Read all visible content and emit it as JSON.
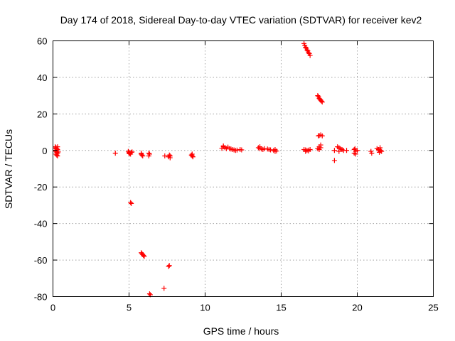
{
  "chart_data": {
    "type": "scatter",
    "title": "Day 174 of 2018, Sidereal Day-to-day VTEC variation (SDTVAR) for receiver kev2",
    "xlabel": "GPS time / hours",
    "ylabel": "SDTVAR / TECUs",
    "xlim": [
      0,
      25
    ],
    "ylim": [
      -80,
      60
    ],
    "xticks": [
      0,
      5,
      10,
      15,
      20,
      25
    ],
    "yticks": [
      -80,
      -60,
      -40,
      -20,
      0,
      20,
      40,
      60
    ],
    "grid": true,
    "marker": "+",
    "color": "#ff0000",
    "series": [
      {
        "name": "SDTVAR",
        "points": [
          [
            0.15,
            2
          ],
          [
            0.2,
            1.5
          ],
          [
            0.25,
            1
          ],
          [
            0.3,
            0.5
          ],
          [
            0.15,
            0
          ],
          [
            0.2,
            -0.5
          ],
          [
            0.25,
            -1
          ],
          [
            0.3,
            -1.5
          ],
          [
            0.2,
            -2
          ],
          [
            0.25,
            -2.5
          ],
          [
            0.3,
            -3
          ],
          [
            0.2,
            1
          ],
          [
            0.3,
            2
          ],
          [
            0.25,
            0.3
          ],
          [
            0.35,
            -0.8
          ],
          [
            4.1,
            -1.5
          ],
          [
            4.95,
            -0.5
          ],
          [
            5.0,
            -1
          ],
          [
            5.05,
            -1.5
          ],
          [
            5.1,
            -2
          ],
          [
            5.15,
            -1
          ],
          [
            5.2,
            -0.8
          ],
          [
            5.0,
            -1.8
          ],
          [
            5.1,
            -28.5
          ],
          [
            5.15,
            -29
          ],
          [
            5.8,
            -2
          ],
          [
            5.85,
            -2.5
          ],
          [
            5.9,
            -3
          ],
          [
            5.8,
            -1.5
          ],
          [
            5.8,
            -56
          ],
          [
            5.85,
            -56.5
          ],
          [
            5.9,
            -57
          ],
          [
            5.95,
            -57.5
          ],
          [
            6.0,
            -58
          ],
          [
            6.3,
            -1.5
          ],
          [
            6.35,
            -2
          ],
          [
            6.3,
            -3
          ],
          [
            6.35,
            -78.5
          ],
          [
            6.4,
            -79
          ],
          [
            7.3,
            -75.5
          ],
          [
            7.35,
            -3
          ],
          [
            7.6,
            -3.5
          ],
          [
            7.65,
            -2.5
          ],
          [
            7.7,
            -3
          ],
          [
            7.7,
            -4
          ],
          [
            7.6,
            -63.5
          ],
          [
            7.65,
            -63
          ],
          [
            9.1,
            -2.5
          ],
          [
            9.15,
            -3
          ],
          [
            9.2,
            -3.5
          ],
          [
            9.15,
            -2
          ],
          [
            11.2,
            2
          ],
          [
            11.3,
            1.5
          ],
          [
            11.4,
            1
          ],
          [
            11.1,
            1.2
          ],
          [
            11.5,
            1.8
          ],
          [
            11.6,
            1
          ],
          [
            11.7,
            0.8
          ],
          [
            11.8,
            0.5
          ],
          [
            11.9,
            0.3
          ],
          [
            12.0,
            0
          ],
          [
            12.1,
            0.2
          ],
          [
            12.3,
            0.5
          ],
          [
            12.4,
            0.3
          ],
          [
            11.2,
            2.5
          ],
          [
            13.5,
            1.5
          ],
          [
            13.6,
            1
          ],
          [
            13.7,
            0.8
          ],
          [
            13.8,
            0.5
          ],
          [
            13.9,
            1
          ],
          [
            14.1,
            0.8
          ],
          [
            14.2,
            0.5
          ],
          [
            14.3,
            0.3
          ],
          [
            14.5,
            0
          ],
          [
            14.6,
            -0.5
          ],
          [
            14.7,
            -0.3
          ],
          [
            14.6,
            0.5
          ],
          [
            13.6,
            2
          ],
          [
            16.5,
            0.5
          ],
          [
            16.6,
            0.3
          ],
          [
            16.7,
            0
          ],
          [
            16.8,
            0.2
          ],
          [
            16.9,
            0.5
          ],
          [
            16.6,
            -0.5
          ],
          [
            16.8,
            -0.3
          ],
          [
            16.5,
            58.5
          ],
          [
            16.55,
            57.5
          ],
          [
            16.6,
            56.5
          ],
          [
            16.65,
            56
          ],
          [
            16.7,
            55
          ],
          [
            16.75,
            54.5
          ],
          [
            16.8,
            53.5
          ],
          [
            16.85,
            53
          ],
          [
            16.9,
            52
          ],
          [
            17.4,
            30
          ],
          [
            17.45,
            29.5
          ],
          [
            17.5,
            28.5
          ],
          [
            17.55,
            28
          ],
          [
            17.6,
            27.5
          ],
          [
            17.65,
            27
          ],
          [
            17.7,
            26.5
          ],
          [
            17.45,
            8
          ],
          [
            17.5,
            8.2
          ],
          [
            17.6,
            8.5
          ],
          [
            17.7,
            8
          ],
          [
            17.4,
            1
          ],
          [
            17.5,
            2
          ],
          [
            17.6,
            3
          ],
          [
            17.5,
            0.5
          ],
          [
            17.6,
            1.5
          ],
          [
            18.5,
            0
          ],
          [
            18.5,
            -5.5
          ],
          [
            18.7,
            2
          ],
          [
            18.8,
            1.5
          ],
          [
            18.9,
            1
          ],
          [
            19.0,
            0.5
          ],
          [
            19.1,
            0
          ],
          [
            18.8,
            -0.5
          ],
          [
            19.3,
            0
          ],
          [
            19.8,
            0.5
          ],
          [
            19.9,
            -0.5
          ],
          [
            19.8,
            -1.5
          ],
          [
            19.9,
            -2
          ],
          [
            20.0,
            0
          ],
          [
            19.85,
            1
          ],
          [
            20.9,
            -0.5
          ],
          [
            20.95,
            -1.5
          ],
          [
            21.3,
            1
          ],
          [
            21.4,
            0.5
          ],
          [
            21.5,
            0
          ],
          [
            21.6,
            -0.5
          ],
          [
            21.5,
            1.5
          ],
          [
            21.45,
            -1
          ],
          [
            21.55,
            -0.2
          ]
        ]
      }
    ]
  }
}
